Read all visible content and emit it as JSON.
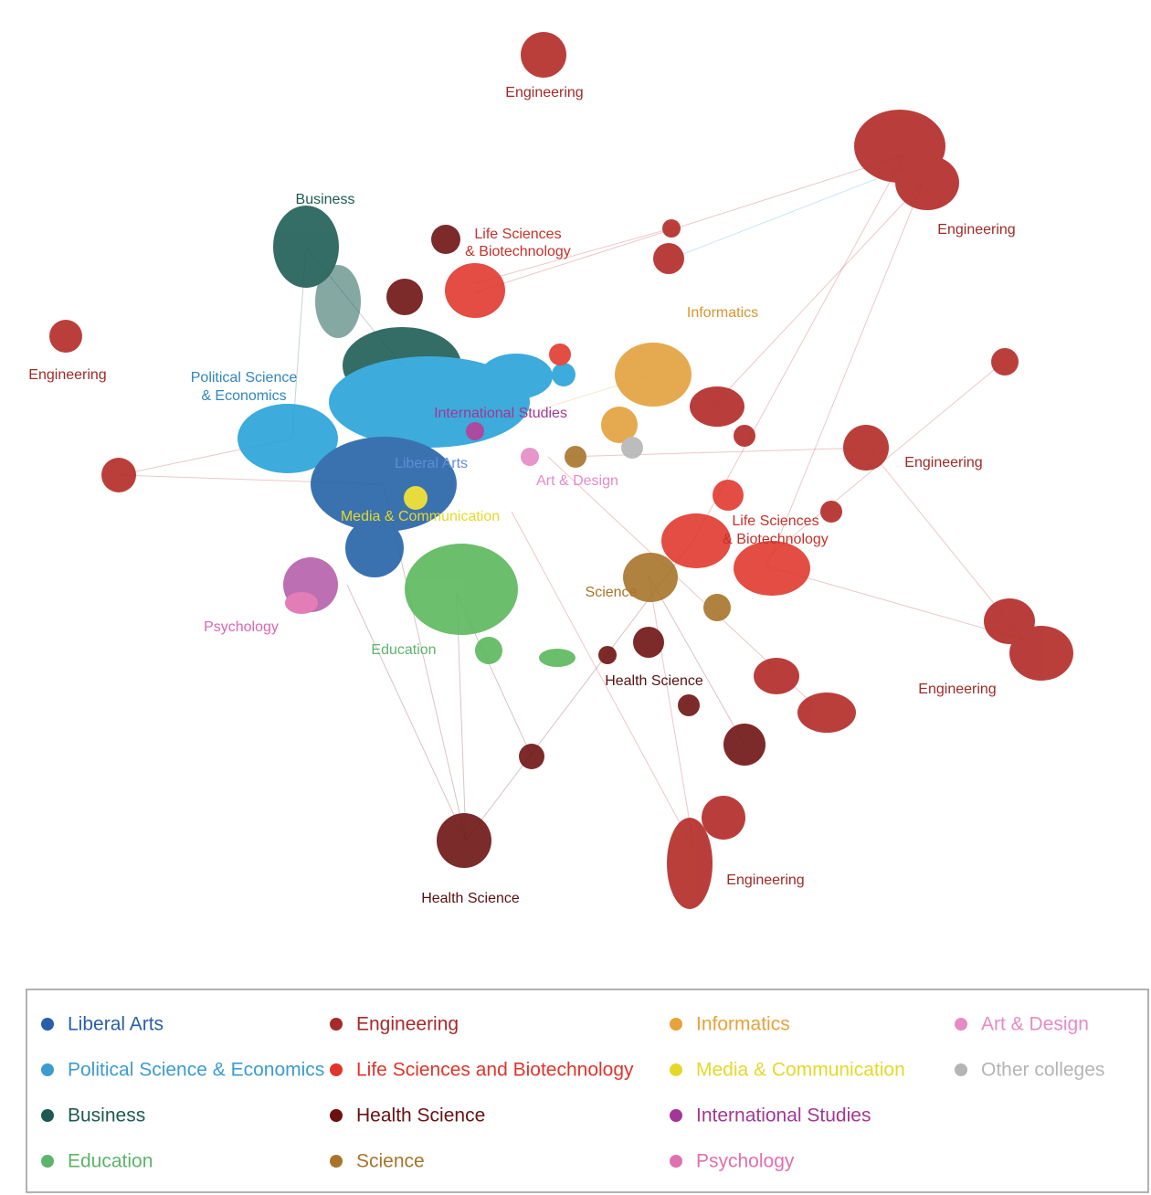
{
  "cluster_labels": [
    {
      "lines": [
        "Engineering"
      ]
    },
    {
      "lines": [
        "Engineering"
      ]
    },
    {
      "lines": [
        "Engineering"
      ]
    },
    {
      "lines": [
        "Business"
      ]
    },
    {
      "lines": [
        "Life Sciences",
        "& Biotechnology"
      ]
    },
    {
      "lines": [
        "Informatics"
      ]
    },
    {
      "lines": [
        "Political Science",
        "& Economics"
      ]
    },
    {
      "lines": [
        "International Studies"
      ]
    },
    {
      "lines": [
        "Engineering"
      ]
    },
    {
      "lines": [
        "Liberal Arts"
      ]
    },
    {
      "lines": [
        "Art & Design"
      ]
    },
    {
      "lines": [
        "Media & Communication"
      ]
    },
    {
      "lines": [
        "Life Sciences",
        "& Biotechnology"
      ]
    },
    {
      "lines": [
        "Science"
      ]
    },
    {
      "lines": [
        "Psychology"
      ]
    },
    {
      "lines": [
        "Education"
      ]
    },
    {
      "lines": [
        "Health Science"
      ]
    },
    {
      "lines": [
        "Engineering"
      ]
    },
    {
      "lines": [
        "Health Science"
      ]
    },
    {
      "lines": [
        "Engineering"
      ]
    }
  ],
  "legend": {
    "items": [
      {
        "label": "Liberal Arts",
        "color": "#2a5ea8"
      },
      {
        "label": "Political Science & Economics",
        "color": "#3d9ccf"
      },
      {
        "label": "Business",
        "color": "#1d5b52"
      },
      {
        "label": "Education",
        "color": "#5cb46a"
      },
      {
        "label": "Engineering",
        "color": "#a8292a"
      },
      {
        "label": "Life Sciences and Biotechnology",
        "color": "#e0352c"
      },
      {
        "label": "Health Science",
        "color": "#6b1111"
      },
      {
        "label": "Science",
        "color": "#a8742c"
      },
      {
        "label": "Informatics",
        "color": "#e8a23a"
      },
      {
        "label": "Media & Communication",
        "color": "#e6d82a"
      },
      {
        "label": "International Studies",
        "color": "#a23795"
      },
      {
        "label": "Psychology",
        "color": "#e070b0"
      },
      {
        "label": "Art & Design",
        "color": "#e68ac6"
      },
      {
        "label": "Other colleges",
        "color": "#b5b5b5"
      }
    ]
  }
}
